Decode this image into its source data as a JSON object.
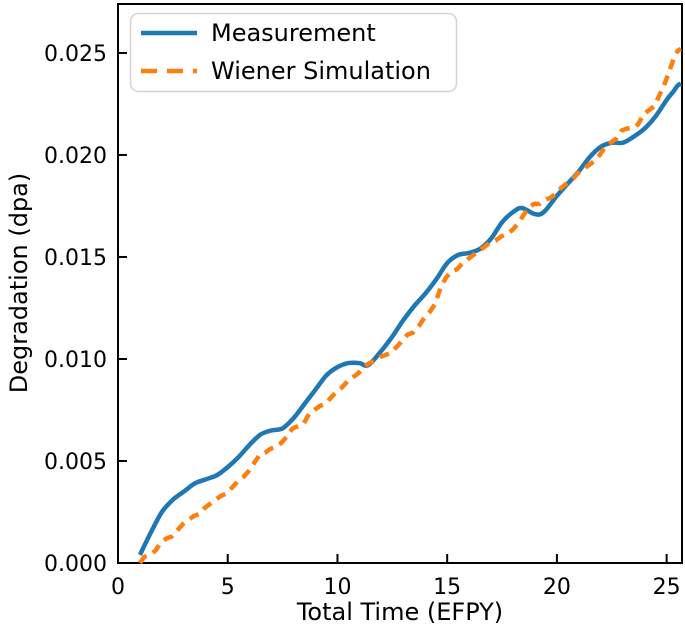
{
  "figure": {
    "background": "#ffffff"
  },
  "colors": {
    "measurement": "#1f77b4",
    "wiener_simulation": "#ff7f0e",
    "axis": "#000000",
    "legend_border": "#d4d4d4",
    "legend_fill": "#ffffff"
  },
  "chart_data": {
    "type": "line",
    "title": "",
    "xlabel": "Total Time (EFPY)",
    "ylabel": "Degradation (dpa)",
    "xlim": [
      0,
      25.7
    ],
    "ylim": [
      0,
      0.0274
    ],
    "grid": false,
    "xticks": [
      0,
      5,
      10,
      15,
      20,
      25
    ],
    "xtick_labels": [
      "0",
      "5",
      "10",
      "15",
      "20",
      "25"
    ],
    "yticks": [
      0.0,
      0.005,
      0.01,
      0.015,
      0.02,
      0.025
    ],
    "ytick_labels": [
      "0.000",
      "0.005",
      "0.010",
      "0.015",
      "0.020",
      "0.025"
    ],
    "legend": {
      "position": "upper-left",
      "entries": [
        {
          "label": "Measurement",
          "style": "solid"
        },
        {
          "label": "Wiener Simulation",
          "style": "dashed"
        }
      ]
    },
    "series": [
      {
        "name": "Measurement",
        "color": "#1f77b4",
        "style": "solid",
        "points": [
          [
            1.0,
            0.0004
          ],
          [
            1.5,
            0.0015
          ],
          [
            2.0,
            0.0025
          ],
          [
            2.5,
            0.0031
          ],
          [
            3.0,
            0.0035
          ],
          [
            3.5,
            0.0039
          ],
          [
            4.0,
            0.0041
          ],
          [
            4.5,
            0.0043
          ],
          [
            5.0,
            0.0047
          ],
          [
            5.5,
            0.0052
          ],
          [
            6.0,
            0.0058
          ],
          [
            6.5,
            0.0063
          ],
          [
            7.0,
            0.0065
          ],
          [
            7.5,
            0.0066
          ],
          [
            8.0,
            0.0071
          ],
          [
            8.5,
            0.0078
          ],
          [
            9.0,
            0.0085
          ],
          [
            9.5,
            0.0092
          ],
          [
            10.0,
            0.0096
          ],
          [
            10.5,
            0.0098
          ],
          [
            11.0,
            0.0098
          ],
          [
            11.4,
            0.0097
          ],
          [
            12.0,
            0.0104
          ],
          [
            12.5,
            0.0111
          ],
          [
            13.0,
            0.0119
          ],
          [
            13.5,
            0.0126
          ],
          [
            14.0,
            0.0132
          ],
          [
            14.5,
            0.0139
          ],
          [
            15.0,
            0.0147
          ],
          [
            15.5,
            0.0151
          ],
          [
            16.0,
            0.0152
          ],
          [
            16.5,
            0.0154
          ],
          [
            17.0,
            0.0159
          ],
          [
            17.5,
            0.0167
          ],
          [
            18.0,
            0.0172
          ],
          [
            18.4,
            0.0174
          ],
          [
            19.0,
            0.0171
          ],
          [
            19.4,
            0.0172
          ],
          [
            20.0,
            0.018
          ],
          [
            20.5,
            0.0186
          ],
          [
            21.0,
            0.0192
          ],
          [
            21.5,
            0.0199
          ],
          [
            22.0,
            0.0204
          ],
          [
            22.5,
            0.0206
          ],
          [
            23.0,
            0.0206
          ],
          [
            23.5,
            0.0209
          ],
          [
            24.0,
            0.0213
          ],
          [
            24.5,
            0.0219
          ],
          [
            25.0,
            0.0227
          ],
          [
            25.3,
            0.0231
          ],
          [
            25.5,
            0.0234
          ],
          [
            25.65,
            0.0235
          ]
        ]
      },
      {
        "name": "Wiener Simulation",
        "color": "#ff7f0e",
        "style": "dashed",
        "points": [
          [
            1.0,
            0.0
          ],
          [
            1.2,
            0.0003
          ],
          [
            1.45,
            0.0004
          ],
          [
            1.7,
            0.0006
          ],
          [
            1.95,
            0.001
          ],
          [
            2.2,
            0.0012
          ],
          [
            2.45,
            0.0013
          ],
          [
            2.7,
            0.0016
          ],
          [
            2.95,
            0.0019
          ],
          [
            3.2,
            0.0021
          ],
          [
            3.45,
            0.0023
          ],
          [
            3.7,
            0.0024
          ],
          [
            3.95,
            0.0027
          ],
          [
            4.2,
            0.0029
          ],
          [
            4.45,
            0.0031
          ],
          [
            4.7,
            0.0033
          ],
          [
            4.95,
            0.0034
          ],
          [
            5.2,
            0.0037
          ],
          [
            5.45,
            0.004
          ],
          [
            5.7,
            0.0042
          ],
          [
            5.95,
            0.0045
          ],
          [
            6.2,
            0.0049
          ],
          [
            6.45,
            0.0053
          ],
          [
            6.7,
            0.0054
          ],
          [
            6.95,
            0.0056
          ],
          [
            7.2,
            0.0057
          ],
          [
            7.45,
            0.0059
          ],
          [
            7.7,
            0.0062
          ],
          [
            7.95,
            0.0066
          ],
          [
            8.2,
            0.0067
          ],
          [
            8.45,
            0.0068
          ],
          [
            8.7,
            0.0073
          ],
          [
            8.95,
            0.0075
          ],
          [
            9.2,
            0.0077
          ],
          [
            9.45,
            0.0078
          ],
          [
            9.7,
            0.0081
          ],
          [
            9.95,
            0.0084
          ],
          [
            10.2,
            0.0086
          ],
          [
            10.45,
            0.0089
          ],
          [
            10.7,
            0.0091
          ],
          [
            10.95,
            0.0093
          ],
          [
            11.2,
            0.0096
          ],
          [
            11.45,
            0.0098
          ],
          [
            11.7,
            0.0099
          ],
          [
            11.95,
            0.0101
          ],
          [
            12.2,
            0.0102
          ],
          [
            12.45,
            0.0103
          ],
          [
            12.7,
            0.0106
          ],
          [
            12.95,
            0.0109
          ],
          [
            13.2,
            0.0112
          ],
          [
            13.45,
            0.0113
          ],
          [
            13.7,
            0.0116
          ],
          [
            13.95,
            0.012
          ],
          [
            14.2,
            0.0123
          ],
          [
            14.45,
            0.0127
          ],
          [
            14.7,
            0.0135
          ],
          [
            14.95,
            0.014
          ],
          [
            15.2,
            0.0143
          ],
          [
            15.45,
            0.0144
          ],
          [
            15.7,
            0.0147
          ],
          [
            15.95,
            0.0149
          ],
          [
            16.2,
            0.0151
          ],
          [
            16.45,
            0.0153
          ],
          [
            16.7,
            0.0155
          ],
          [
            16.95,
            0.0157
          ],
          [
            17.2,
            0.0158
          ],
          [
            17.45,
            0.016
          ],
          [
            17.7,
            0.0161
          ],
          [
            17.95,
            0.0163
          ],
          [
            18.2,
            0.0166
          ],
          [
            18.45,
            0.017
          ],
          [
            18.7,
            0.0174
          ],
          [
            18.95,
            0.0176
          ],
          [
            19.2,
            0.0176
          ],
          [
            19.45,
            0.0178
          ],
          [
            19.7,
            0.0179
          ],
          [
            19.95,
            0.0181
          ],
          [
            20.2,
            0.0184
          ],
          [
            20.45,
            0.0186
          ],
          [
            20.7,
            0.0188
          ],
          [
            20.95,
            0.0191
          ],
          [
            21.2,
            0.0193
          ],
          [
            21.45,
            0.0195
          ],
          [
            21.7,
            0.0197
          ],
          [
            21.95,
            0.02
          ],
          [
            22.2,
            0.0204
          ],
          [
            22.45,
            0.0206
          ],
          [
            22.7,
            0.0208
          ],
          [
            22.95,
            0.0212
          ],
          [
            23.2,
            0.0213
          ],
          [
            23.45,
            0.0213
          ],
          [
            23.7,
            0.0215
          ],
          [
            23.95,
            0.022
          ],
          [
            24.2,
            0.0222
          ],
          [
            24.45,
            0.0224
          ],
          [
            24.7,
            0.023
          ],
          [
            24.95,
            0.0236
          ],
          [
            25.15,
            0.0242
          ],
          [
            25.35,
            0.0248
          ],
          [
            25.5,
            0.0251
          ],
          [
            25.65,
            0.0252
          ]
        ]
      }
    ]
  }
}
